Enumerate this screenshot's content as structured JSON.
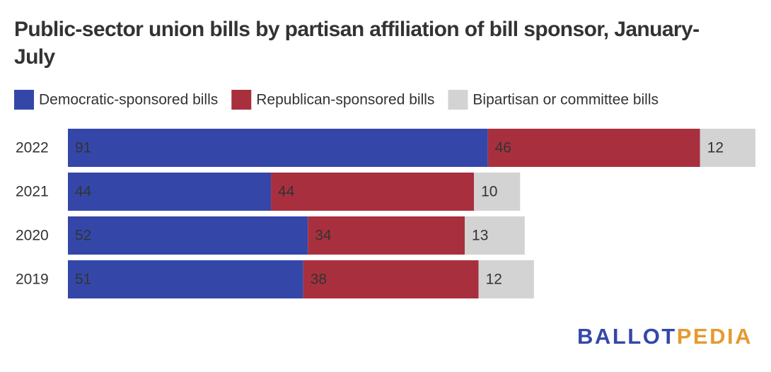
{
  "chart_data": {
    "type": "stacked_bar",
    "title": "Public-sector union bills by partisan affiliation of bill sponsor, January-July",
    "categories": [
      "2022",
      "2021",
      "2020",
      "2019"
    ],
    "series": [
      {
        "name": "Democratic-sponsored bills",
        "color": "#3447a9",
        "label_color": "#ffffff",
        "values": [
          91,
          44,
          52,
          51
        ]
      },
      {
        "name": "Republican-sponsored bills",
        "color": "#a8303e",
        "label_color": "#ffffff",
        "values": [
          46,
          44,
          34,
          38
        ]
      },
      {
        "name": "Bipartisan or committee bills",
        "color": "#d3d3d3",
        "label_color": "#333333",
        "values": [
          12,
          10,
          13,
          12
        ]
      }
    ],
    "legend": "top-left",
    "logo": [
      {
        "text": "BALLOT",
        "color": "#3447a9"
      },
      {
        "text": "PEDIA",
        "color": "#e59a2f"
      }
    ]
  }
}
